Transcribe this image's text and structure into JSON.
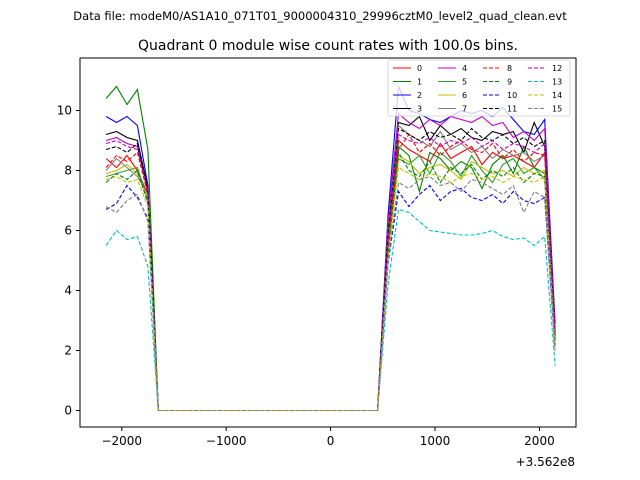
{
  "figure": {
    "suptitle": "Data file: modeM0/AS1A10_071T01_9000004310_29996cztM0_level2_quad_clean.evt"
  },
  "chart_data": {
    "type": "line",
    "title": "Quadrant 0 module wise count rates with 100.0s bins.",
    "xlabel": "",
    "ylabel": "",
    "x_offset_label": "+3.562e8",
    "xlim": [
      -2400,
      2350
    ],
    "ylim": [
      -0.55,
      11.75
    ],
    "xticks": [
      -2000,
      -1000,
      0,
      1000,
      2000
    ],
    "xtick_labels": [
      "−2000",
      "−1000",
      "0",
      "1000",
      "2000"
    ],
    "yticks": [
      0,
      2,
      4,
      6,
      8,
      10
    ],
    "ytick_labels": [
      "0",
      "2",
      "4",
      "6",
      "8",
      "10"
    ],
    "grid": false,
    "legend_placement": "top-right",
    "legend_columns": 4,
    "x": [
      -2150,
      -2050,
      -1950,
      -1850,
      -1750,
      -1650,
      -1550,
      -1450,
      -1350,
      -1250,
      -1150,
      -1050,
      -950,
      -850,
      -750,
      -650,
      -550,
      -450,
      -350,
      -250,
      -150,
      -50,
      50,
      150,
      250,
      350,
      450,
      550,
      650,
      750,
      850,
      950,
      1050,
      1150,
      1250,
      1350,
      1450,
      1550,
      1650,
      1750,
      1850,
      1950,
      2050,
      2150
    ],
    "series": [
      {
        "name": "0",
        "color": "#ff0000",
        "dash": "solid",
        "values": [
          8.4,
          8.1,
          8.5,
          8.0,
          7.2,
          0,
          0,
          0,
          0,
          0,
          0,
          0,
          0,
          0,
          0,
          0,
          0,
          0,
          0,
          0,
          0,
          0,
          0,
          0,
          0,
          0,
          0,
          5.5,
          9.0,
          8.7,
          8.5,
          8.3,
          8.9,
          8.4,
          8.6,
          8.8,
          8.2,
          8.6,
          8.4,
          8.5,
          8.3,
          8.1,
          8.6,
          2.5
        ]
      },
      {
        "name": "1",
        "color": "#008000",
        "dash": "solid",
        "values": [
          10.4,
          10.8,
          10.2,
          10.7,
          8.7,
          0,
          0,
          0,
          0,
          0,
          0,
          0,
          0,
          0,
          0,
          0,
          0,
          0,
          0,
          0,
          0,
          0,
          0,
          0,
          0,
          0,
          0,
          5.8,
          8.8,
          8.5,
          7.3,
          8.6,
          8.4,
          8.0,
          8.3,
          8.1,
          7.4,
          8.2,
          8.5,
          7.9,
          8.8,
          8.1,
          7.9,
          2.2
        ]
      },
      {
        "name": "2",
        "color": "#0000ff",
        "dash": "solid",
        "values": [
          9.8,
          9.6,
          9.8,
          9.5,
          7.5,
          0,
          0,
          0,
          0,
          0,
          0,
          0,
          0,
          0,
          0,
          0,
          0,
          0,
          0,
          0,
          0,
          0,
          0,
          0,
          0,
          0,
          0,
          6.5,
          10.8,
          10.0,
          9.9,
          9.7,
          9.6,
          9.8,
          10.0,
          9.9,
          10.0,
          9.8,
          10.1,
          9.7,
          9.3,
          9.2,
          9.7,
          2.9
        ]
      },
      {
        "name": "3",
        "color": "#000000",
        "dash": "solid",
        "values": [
          9.2,
          9.3,
          9.1,
          9.0,
          7.4,
          0,
          0,
          0,
          0,
          0,
          0,
          0,
          0,
          0,
          0,
          0,
          0,
          0,
          0,
          0,
          0,
          0,
          0,
          0,
          0,
          0,
          0,
          6.2,
          9.6,
          9.5,
          9.8,
          9.0,
          9.5,
          9.2,
          9.4,
          9.1,
          9.0,
          9.3,
          9.2,
          9.3,
          8.6,
          9.6,
          8.8,
          2.6
        ]
      },
      {
        "name": "4",
        "color": "#bf00bf",
        "dash": "solid",
        "values": [
          9.0,
          9.1,
          8.9,
          8.8,
          7.3,
          0,
          0,
          0,
          0,
          0,
          0,
          0,
          0,
          0,
          0,
          0,
          0,
          0,
          0,
          0,
          0,
          0,
          0,
          0,
          0,
          0,
          0,
          6.3,
          9.9,
          9.6,
          9.4,
          9.7,
          9.5,
          9.8,
          9.7,
          9.6,
          9.8,
          9.5,
          9.6,
          9.1,
          9.3,
          9.0,
          9.4,
          2.7
        ]
      },
      {
        "name": "5",
        "color": "#2ca02c",
        "dash": "solid",
        "values": [
          7.8,
          7.9,
          8.0,
          8.1,
          7.0,
          0,
          0,
          0,
          0,
          0,
          0,
          0,
          0,
          0,
          0,
          0,
          0,
          0,
          0,
          0,
          0,
          0,
          0,
          0,
          0,
          0,
          0,
          5.4,
          8.4,
          8.2,
          8.5,
          7.9,
          8.6,
          8.3,
          7.8,
          8.5,
          8.0,
          7.6,
          8.2,
          8.4,
          7.9,
          8.1,
          7.7,
          2.3
        ]
      },
      {
        "name": "6",
        "color": "#bfbf00",
        "dash": "solid",
        "values": [
          7.9,
          8.0,
          8.2,
          7.9,
          7.1,
          0,
          0,
          0,
          0,
          0,
          0,
          0,
          0,
          0,
          0,
          0,
          0,
          0,
          0,
          0,
          0,
          0,
          0,
          0,
          0,
          0,
          0,
          5.3,
          8.5,
          8.3,
          7.9,
          8.1,
          8.2,
          8.0,
          7.7,
          8.3,
          8.1,
          7.9,
          8.0,
          7.8,
          8.1,
          7.9,
          8.0,
          2.2
        ]
      },
      {
        "name": "7",
        "color": "#808080",
        "dash": "solid",
        "values": [
          8.0,
          8.4,
          8.1,
          7.8,
          7.2,
          0,
          0,
          0,
          0,
          0,
          0,
          0,
          0,
          0,
          0,
          0,
          0,
          0,
          0,
          0,
          0,
          0,
          0,
          0,
          0,
          0,
          0,
          6.0,
          9.5,
          9.2,
          9.0,
          8.8,
          9.3,
          8.7,
          8.9,
          8.6,
          8.8,
          8.4,
          8.7,
          8.5,
          8.6,
          8.3,
          8.5,
          2.4
        ]
      },
      {
        "name": "8",
        "color": "#ff0000",
        "dash": "dashed",
        "values": [
          8.1,
          8.5,
          8.3,
          8.6,
          7.2,
          0,
          0,
          0,
          0,
          0,
          0,
          0,
          0,
          0,
          0,
          0,
          0,
          0,
          0,
          0,
          0,
          0,
          0,
          0,
          0,
          0,
          0,
          5.6,
          8.7,
          9.2,
          8.6,
          8.9,
          8.5,
          8.8,
          9.0,
          8.7,
          8.6,
          8.9,
          8.4,
          8.7,
          8.3,
          8.6,
          8.5,
          2.4
        ]
      },
      {
        "name": "9",
        "color": "#008000",
        "dash": "dashed",
        "values": [
          7.6,
          7.9,
          7.7,
          8.0,
          6.9,
          0,
          0,
          0,
          0,
          0,
          0,
          0,
          0,
          0,
          0,
          0,
          0,
          0,
          0,
          0,
          0,
          0,
          0,
          0,
          0,
          0,
          0,
          5.2,
          8.6,
          8.0,
          7.8,
          8.3,
          7.6,
          8.1,
          7.9,
          8.2,
          7.7,
          8.0,
          7.8,
          8.1,
          7.6,
          7.9,
          7.8,
          2.2
        ]
      },
      {
        "name": "10",
        "color": "#0000ff",
        "dash": "dashed",
        "values": [
          6.7,
          6.9,
          7.5,
          7.1,
          6.4,
          0,
          0,
          0,
          0,
          0,
          0,
          0,
          0,
          0,
          0,
          0,
          0,
          0,
          0,
          0,
          0,
          0,
          0,
          0,
          0,
          0,
          0,
          4.9,
          7.3,
          6.8,
          7.2,
          7.5,
          7.0,
          7.3,
          7.4,
          7.1,
          7.0,
          7.2,
          6.9,
          7.3,
          7.0,
          6.9,
          7.1,
          2.0
        ]
      },
      {
        "name": "11",
        "color": "#000000",
        "dash": "dashed",
        "values": [
          8.7,
          8.8,
          8.6,
          8.9,
          7.3,
          0,
          0,
          0,
          0,
          0,
          0,
          0,
          0,
          0,
          0,
          0,
          0,
          0,
          0,
          0,
          0,
          0,
          0,
          0,
          0,
          0,
          0,
          5.9,
          9.4,
          9.2,
          9.0,
          9.3,
          9.1,
          9.2,
          9.0,
          9.4,
          9.1,
          9.0,
          9.2,
          8.9,
          9.1,
          8.8,
          9.0,
          2.5
        ]
      },
      {
        "name": "12",
        "color": "#bf00bf",
        "dash": "dashed",
        "values": [
          8.9,
          9.0,
          8.8,
          8.7,
          7.3,
          0,
          0,
          0,
          0,
          0,
          0,
          0,
          0,
          0,
          0,
          0,
          0,
          0,
          0,
          0,
          0,
          0,
          0,
          0,
          0,
          0,
          0,
          5.7,
          9.2,
          9.0,
          8.9,
          9.1,
          8.8,
          9.0,
          8.9,
          9.1,
          8.8,
          9.0,
          8.7,
          8.9,
          8.8,
          8.6,
          8.9,
          2.5
        ]
      },
      {
        "name": "13",
        "color": "#00bfbf",
        "dash": "dashed",
        "values": [
          5.5,
          6.0,
          5.7,
          5.8,
          4.8,
          0,
          0,
          0,
          0,
          0,
          0,
          0,
          0,
          0,
          0,
          0,
          0,
          0,
          0,
          0,
          0,
          0,
          0,
          0,
          0,
          0,
          0,
          4.2,
          6.7,
          6.6,
          6.3,
          6.0,
          5.95,
          5.9,
          5.85,
          5.85,
          5.9,
          6.0,
          5.8,
          5.7,
          5.75,
          5.5,
          5.8,
          1.5
        ]
      },
      {
        "name": "14",
        "color": "#bfbf00",
        "dash": "dashed",
        "values": [
          7.7,
          7.8,
          7.6,
          7.7,
          6.8,
          0,
          0,
          0,
          0,
          0,
          0,
          0,
          0,
          0,
          0,
          0,
          0,
          0,
          0,
          0,
          0,
          0,
          0,
          0,
          0,
          0,
          0,
          5.1,
          8.1,
          7.9,
          7.7,
          7.9,
          7.8,
          7.6,
          7.8,
          7.9,
          7.7,
          7.8,
          7.6,
          7.8,
          7.7,
          7.6,
          7.8,
          2.1
        ]
      },
      {
        "name": "15",
        "color": "#808080",
        "dash": "dashed",
        "values": [
          6.8,
          6.6,
          7.0,
          7.2,
          6.3,
          0,
          0,
          0,
          0,
          0,
          0,
          0,
          0,
          0,
          0,
          0,
          0,
          0,
          0,
          0,
          0,
          0,
          0,
          0,
          0,
          0,
          0,
          5.0,
          7.6,
          7.4,
          7.7,
          7.8,
          7.5,
          7.6,
          7.3,
          7.7,
          7.6,
          7.4,
          7.2,
          7.5,
          6.6,
          7.3,
          7.1,
          2.0
        ]
      }
    ]
  }
}
